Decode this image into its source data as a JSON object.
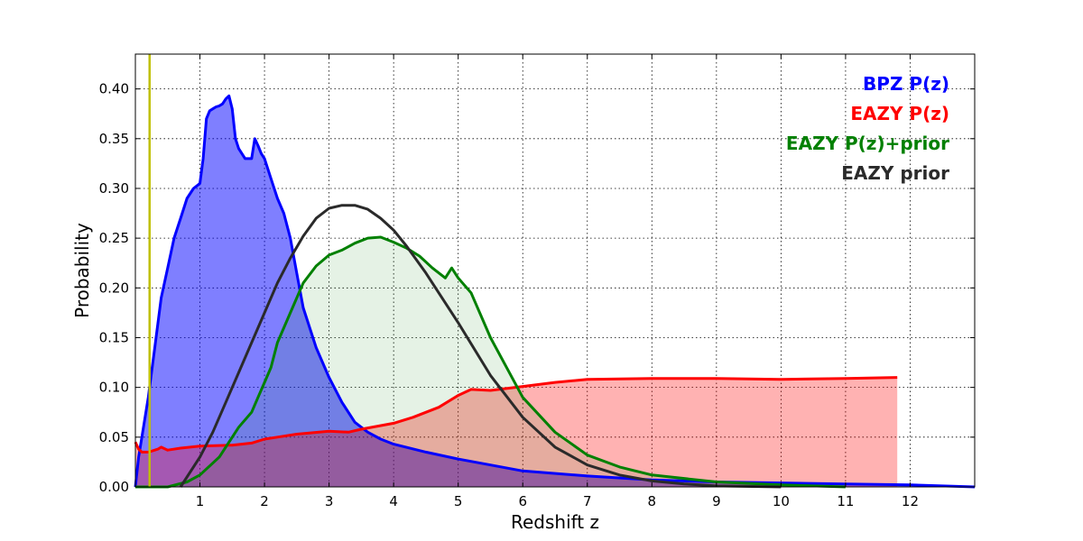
{
  "chart_data": {
    "type": "area",
    "xlabel": "Redshift z",
    "ylabel": "Probability",
    "xlim": [
      0,
      13
    ],
    "ylim": [
      0,
      0.435
    ],
    "x_ticks": [
      1,
      2,
      3,
      4,
      5,
      6,
      7,
      8,
      9,
      10,
      11,
      12
    ],
    "x_tick_labels": [
      "1",
      "2",
      "3",
      "4",
      "5",
      "6",
      "7",
      "8",
      "9",
      "10",
      "11",
      "12"
    ],
    "y_ticks": [
      0,
      0.05,
      0.1,
      0.15,
      0.2,
      0.25,
      0.3,
      0.35,
      0.4
    ],
    "y_tick_labels": [
      "0.00",
      "0.05",
      "0.10",
      "0.15",
      "0.20",
      "0.25",
      "0.30",
      "0.35",
      "0.40"
    ],
    "grid": true,
    "legend_position": "top-right",
    "vline": {
      "x": 0.22,
      "color": "#bfbf00"
    },
    "series": [
      {
        "name": "BPZ P(z)",
        "color": "#0000ff",
        "fill": "rgba(0,0,255,0.5)",
        "filled": true,
        "x": [
          0,
          0.05,
          0.1,
          0.2,
          0.3,
          0.4,
          0.5,
          0.6,
          0.7,
          0.8,
          0.9,
          1.0,
          1.05,
          1.1,
          1.15,
          1.2,
          1.25,
          1.3,
          1.35,
          1.4,
          1.45,
          1.5,
          1.55,
          1.6,
          1.7,
          1.8,
          1.85,
          1.9,
          1.95,
          2.0,
          2.1,
          2.2,
          2.3,
          2.4,
          2.5,
          2.6,
          2.8,
          3.0,
          3.2,
          3.4,
          3.6,
          3.8,
          4.0,
          4.5,
          5.0,
          5.5,
          6.0,
          7.0,
          8.0,
          9.0,
          10.0,
          11.0,
          12.0,
          13.0
        ],
        "y": [
          0,
          0.03,
          0.05,
          0.09,
          0.14,
          0.19,
          0.22,
          0.25,
          0.27,
          0.29,
          0.3,
          0.305,
          0.33,
          0.37,
          0.378,
          0.38,
          0.382,
          0.383,
          0.385,
          0.39,
          0.393,
          0.38,
          0.35,
          0.34,
          0.33,
          0.33,
          0.35,
          0.343,
          0.335,
          0.33,
          0.31,
          0.29,
          0.275,
          0.25,
          0.215,
          0.18,
          0.14,
          0.11,
          0.085,
          0.065,
          0.055,
          0.048,
          0.043,
          0.035,
          0.028,
          0.022,
          0.016,
          0.011,
          0.007,
          0.005,
          0.004,
          0.003,
          0.002,
          0.0
        ]
      },
      {
        "name": "EAZY P(z)",
        "color": "#ff0000",
        "fill": "rgba(255,0,0,0.3)",
        "filled": true,
        "x": [
          0.0,
          0.05,
          0.1,
          0.2,
          0.3,
          0.35,
          0.4,
          0.5,
          0.7,
          1.0,
          1.5,
          1.8,
          2.0,
          2.2,
          2.5,
          3.0,
          3.3,
          3.5,
          4.0,
          4.3,
          4.7,
          5.0,
          5.2,
          5.5,
          6.0,
          6.5,
          7.0,
          8.0,
          9.0,
          10.0,
          11.0,
          11.8
        ],
        "y": [
          0.045,
          0.038,
          0.035,
          0.035,
          0.037,
          0.038,
          0.04,
          0.037,
          0.039,
          0.041,
          0.042,
          0.044,
          0.048,
          0.05,
          0.053,
          0.056,
          0.055,
          0.058,
          0.064,
          0.07,
          0.08,
          0.092,
          0.098,
          0.097,
          0.101,
          0.105,
          0.108,
          0.109,
          0.109,
          0.108,
          0.109,
          0.11
        ]
      },
      {
        "name": "EAZY P(z)+prior",
        "color": "#008000",
        "fill": "rgba(0,128,0,0.1)",
        "filled": true,
        "x": [
          0.0,
          0.2,
          0.5,
          0.8,
          1.0,
          1.3,
          1.6,
          1.8,
          1.9,
          2.0,
          2.1,
          2.2,
          2.4,
          2.6,
          2.8,
          3.0,
          3.2,
          3.4,
          3.6,
          3.8,
          4.0,
          4.2,
          4.4,
          4.6,
          4.8,
          4.9,
          5.0,
          5.2,
          5.5,
          6.0,
          6.5,
          7.0,
          7.5,
          8.0,
          9.0,
          10.0,
          11.0
        ],
        "y": [
          0.0,
          0.0,
          0.0,
          0.005,
          0.012,
          0.03,
          0.06,
          0.075,
          0.09,
          0.105,
          0.12,
          0.145,
          0.175,
          0.205,
          0.222,
          0.233,
          0.238,
          0.245,
          0.25,
          0.251,
          0.246,
          0.24,
          0.232,
          0.22,
          0.21,
          0.22,
          0.21,
          0.195,
          0.15,
          0.09,
          0.055,
          0.032,
          0.02,
          0.012,
          0.005,
          0.002,
          0.0
        ]
      },
      {
        "name": "EAZY prior",
        "color": "#2a2a2a",
        "fill": "none",
        "filled": false,
        "x": [
          0.7,
          0.8,
          1.0,
          1.2,
          1.4,
          1.6,
          1.8,
          2.0,
          2.2,
          2.4,
          2.6,
          2.8,
          3.0,
          3.2,
          3.4,
          3.6,
          3.8,
          4.0,
          4.2,
          4.5,
          5.0,
          5.5,
          6.0,
          6.5,
          7.0,
          7.5,
          8.0,
          8.5,
          9.0,
          10.0
        ],
        "y": [
          0.0,
          0.01,
          0.03,
          0.055,
          0.085,
          0.115,
          0.145,
          0.175,
          0.205,
          0.23,
          0.252,
          0.27,
          0.28,
          0.283,
          0.283,
          0.279,
          0.27,
          0.258,
          0.242,
          0.215,
          0.165,
          0.112,
          0.07,
          0.04,
          0.022,
          0.012,
          0.006,
          0.003,
          0.001,
          0.0
        ]
      }
    ]
  }
}
